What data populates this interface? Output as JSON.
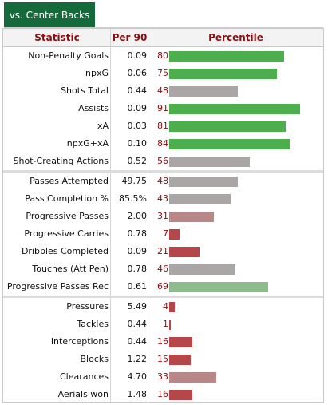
{
  "tab": {
    "label": "vs. Center Backs"
  },
  "headers": {
    "statistic": "Statistic",
    "per90": "Per 90",
    "percentile": "Percentile"
  },
  "chart_data": {
    "type": "bar",
    "orientation": "horizontal",
    "xlim": [
      0,
      99
    ],
    "groups": [
      {
        "rows": [
          {
            "statistic": "Non-Penalty Goals",
            "per90": "0.09",
            "percentile": 80
          },
          {
            "statistic": "npxG",
            "per90": "0.06",
            "percentile": 75
          },
          {
            "statistic": "Shots Total",
            "per90": "0.44",
            "percentile": 48
          },
          {
            "statistic": "Assists",
            "per90": "0.09",
            "percentile": 91
          },
          {
            "statistic": "xA",
            "per90": "0.03",
            "percentile": 81
          },
          {
            "statistic": "npxG+xA",
            "per90": "0.10",
            "percentile": 84
          },
          {
            "statistic": "Shot-Creating Actions",
            "per90": "0.52",
            "percentile": 56
          }
        ]
      },
      {
        "rows": [
          {
            "statistic": "Passes Attempted",
            "per90": "49.75",
            "percentile": 48
          },
          {
            "statistic": "Pass Completion %",
            "per90": "85.5%",
            "percentile": 43
          },
          {
            "statistic": "Progressive Passes",
            "per90": "2.00",
            "percentile": 31
          },
          {
            "statistic": "Progressive Carries",
            "per90": "0.78",
            "percentile": 7
          },
          {
            "statistic": "Dribbles Completed",
            "per90": "0.09",
            "percentile": 21
          },
          {
            "statistic": "Touches (Att Pen)",
            "per90": "0.78",
            "percentile": 46
          },
          {
            "statistic": "Progressive Passes Rec",
            "per90": "0.61",
            "percentile": 69
          }
        ]
      },
      {
        "rows": [
          {
            "statistic": "Pressures",
            "per90": "5.49",
            "percentile": 4
          },
          {
            "statistic": "Tackles",
            "per90": "0.44",
            "percentile": 1
          },
          {
            "statistic": "Interceptions",
            "per90": "0.44",
            "percentile": 16
          },
          {
            "statistic": "Blocks",
            "per90": "1.22",
            "percentile": 15
          },
          {
            "statistic": "Clearances",
            "per90": "4.70",
            "percentile": 33
          },
          {
            "statistic": "Aerials won",
            "per90": "1.48",
            "percentile": 16
          }
        ]
      }
    ],
    "colors": {
      "high": "#4cae4c",
      "mid_high": "#8fbc8f",
      "mid": "#aaa6a6",
      "mid_low": "#b98787",
      "low": "#b5474b"
    }
  }
}
